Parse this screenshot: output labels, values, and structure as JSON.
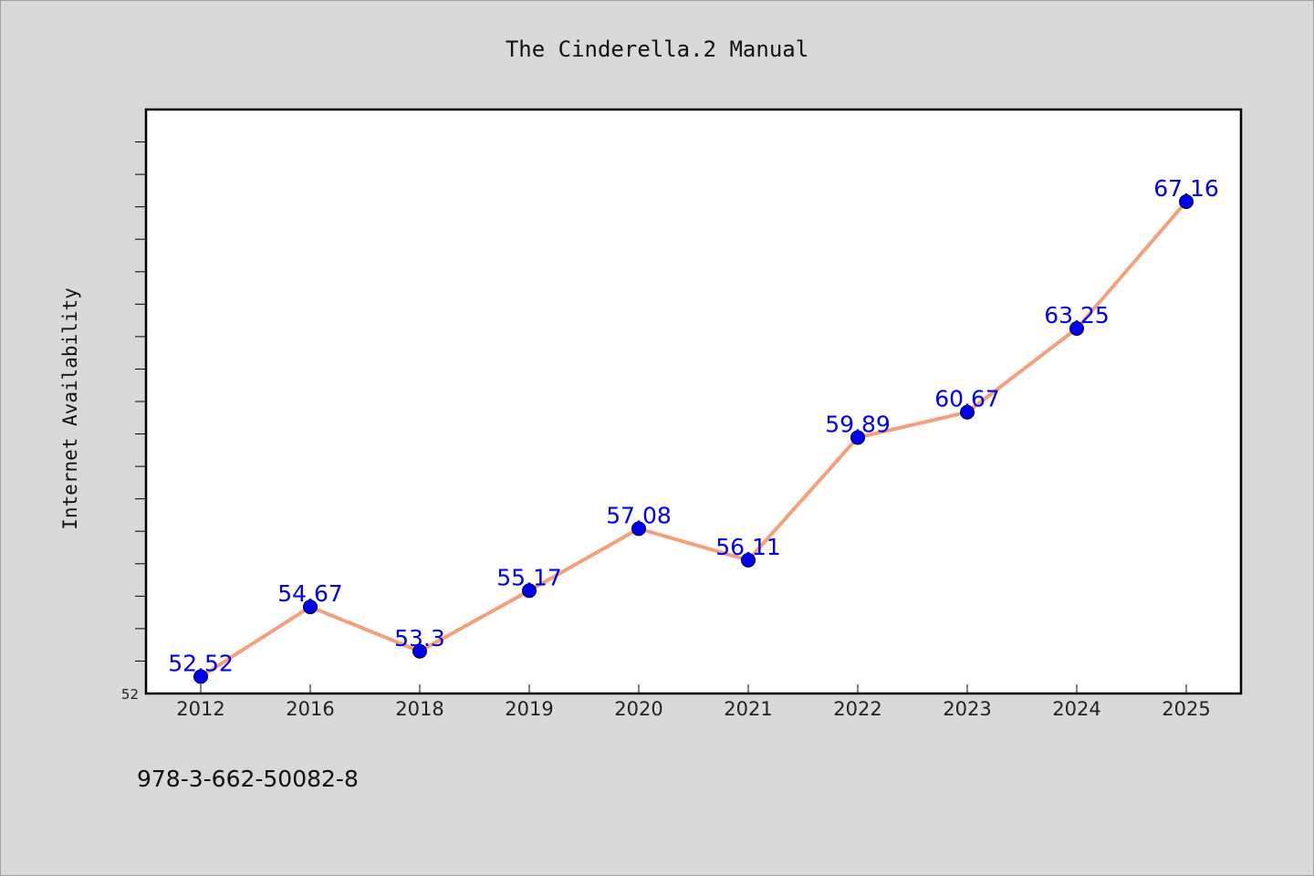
{
  "chart_data": {
    "type": "line",
    "title": "The Cinderella.2 Manual",
    "xlabel": "",
    "ylabel": "Internet Availability",
    "categories": [
      "2012",
      "2016",
      "2018",
      "2019",
      "2020",
      "2021",
      "2022",
      "2023",
      "2024",
      "2025"
    ],
    "values": [
      52.52,
      54.67,
      53.3,
      55.17,
      57.08,
      56.11,
      59.89,
      60.67,
      63.25,
      67.16
    ],
    "ylim": [
      52,
      70
    ],
    "y_tick_labels": [
      "52"
    ],
    "grid": false,
    "line_color": "#f4a07c",
    "marker_color": "#0000ee",
    "label_color": "#0000ee"
  },
  "footer": {
    "isbn": "978-3-662-50082-8"
  },
  "colors": {
    "background": "#d9d9d9",
    "plot_background": "#ffffff",
    "frame": "#000000"
  }
}
